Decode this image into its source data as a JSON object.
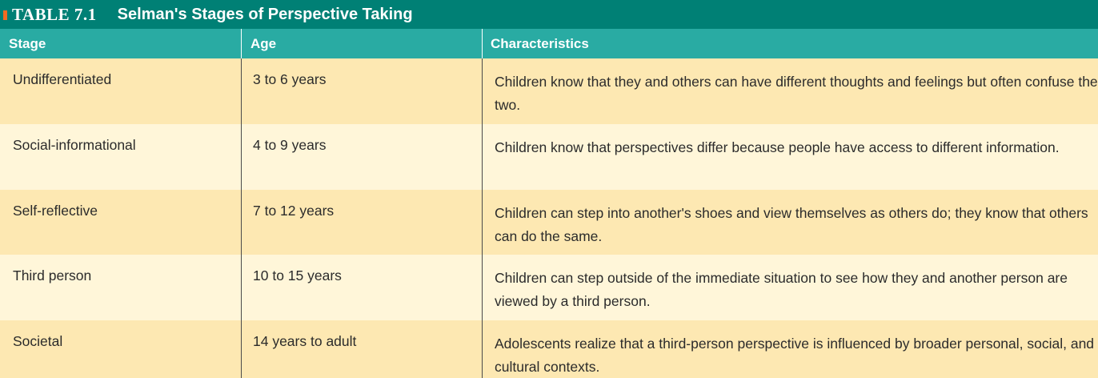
{
  "table": {
    "label": "TABLE 7.1",
    "title": "Selman's Stages of Perspective Taking",
    "headers": {
      "stage": "Stage",
      "age": "Age",
      "characteristics": "Characteristics"
    },
    "rows": [
      {
        "stage": "Undifferentiated",
        "age": "3 to 6 years",
        "characteristics": "Children know that they and others can have different thoughts and feelings but often confuse the two."
      },
      {
        "stage": "Social-informational",
        "age": "4 to 9 years",
        "characteristics": "Children know that perspectives differ because people have access to different information."
      },
      {
        "stage": "Self-reflective",
        "age": "7 to 12 years",
        "characteristics": "Children can step into another's shoes and view themselves as others do; they know that others can do the same."
      },
      {
        "stage": "Third person",
        "age": "10 to 15 years",
        "characteristics": "Children can step outside of the immediate situation to see how they and another person are viewed by a third person."
      },
      {
        "stage": "Societal",
        "age": "14 years to adult",
        "characteristics": "Adolescents realize that a third-person perspective is influenced by broader personal, social, and cultural contexts."
      }
    ]
  },
  "colors": {
    "title_bar": "#008075",
    "header_row": "#29aba3",
    "row_dark": "#fde8b2",
    "row_light": "#fff6d9",
    "marker": "#f26b21"
  }
}
